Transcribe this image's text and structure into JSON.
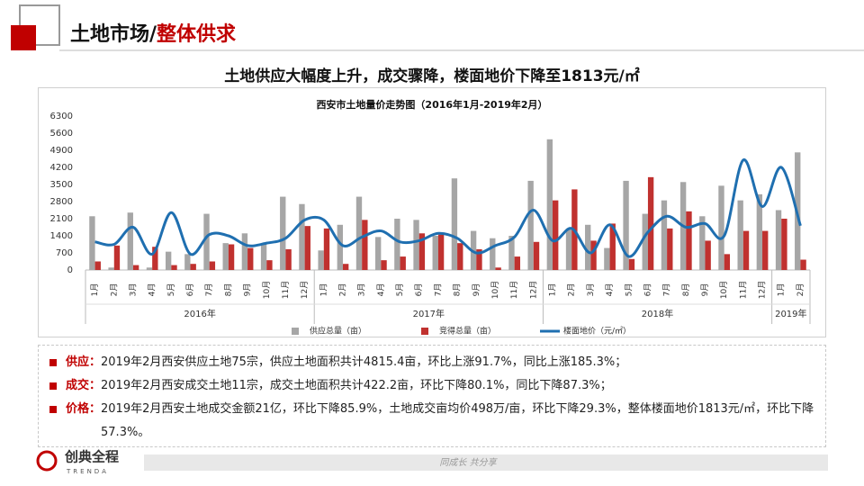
{
  "header": {
    "title_prefix": "土地市场/",
    "title_suffix": "整体供求"
  },
  "subtitle": "土地供应大幅度上升，成交骤降，楼面地价下降至1813元/㎡",
  "chart_data": {
    "type": "bar",
    "title": "西安市土地量价走势图（2016年1月-2019年2月）",
    "categories": [
      "1月",
      "2月",
      "3月",
      "4月",
      "5月",
      "6月",
      "7月",
      "8月",
      "9月",
      "10月",
      "11月",
      "12月",
      "1月",
      "2月",
      "3月",
      "4月",
      "5月",
      "6月",
      "7月",
      "8月",
      "9月",
      "10月",
      "11月",
      "12月",
      "1月",
      "2月",
      "3月",
      "4月",
      "5月",
      "6月",
      "7月",
      "8月",
      "9月",
      "10月",
      "11月",
      "12月",
      "1月",
      "2月"
    ],
    "x_groups": [
      "2016年",
      "2017年",
      "2018年",
      "2019年"
    ],
    "series": [
      {
        "name": "供应总量（亩）",
        "color": "#a6a6a6",
        "kind": "bar",
        "values": [
          2200,
          100,
          2350,
          100,
          750,
          650,
          2300,
          1100,
          1500,
          1050,
          3000,
          2700,
          800,
          1850,
          3000,
          1350,
          2100,
          2050,
          1400,
          3750,
          1600,
          1300,
          1400,
          3650,
          5350,
          1700,
          1850,
          900,
          3650,
          2300,
          2850,
          3600,
          2200,
          3450,
          2850,
          3100,
          2450,
          4815
        ]
      },
      {
        "name": "竞得总量（亩）",
        "color": "#c0312f",
        "kind": "bar",
        "values": [
          350,
          1000,
          200,
          950,
          200,
          250,
          350,
          1050,
          900,
          400,
          850,
          1800,
          1700,
          250,
          2050,
          400,
          550,
          1500,
          1450,
          1100,
          850,
          100,
          550,
          1150,
          2850,
          3300,
          1200,
          1900,
          450,
          3800,
          1700,
          2400,
          1200,
          650,
          1600,
          1600,
          2100,
          422
        ]
      },
      {
        "name": "楼面地价（元/㎡）",
        "color": "#1f6fb0",
        "kind": "line",
        "values": [
          1150,
          1050,
          1750,
          650,
          2350,
          650,
          1450,
          1400,
          1000,
          1100,
          1300,
          2050,
          2050,
          1000,
          1350,
          1600,
          1150,
          1200,
          1500,
          1300,
          700,
          1000,
          1350,
          2450,
          1200,
          1700,
          700,
          1850,
          550,
          1550,
          2200,
          1750,
          1900,
          1400,
          4500,
          2600,
          4200,
          1813
        ]
      }
    ],
    "ylim": [
      0,
      6300
    ],
    "yticks": [
      0,
      700,
      1400,
      2100,
      2800,
      3500,
      4200,
      4900,
      5600,
      6300
    ],
    "grid": false,
    "legend": "bottom"
  },
  "bullets": [
    {
      "label": "供应：",
      "text": "2019年2月西安供应土地75宗，供应土地面积共计4815.4亩，环比上涨91.7%，同比上涨185.3%；"
    },
    {
      "label": "成交：",
      "text": "2019年2月西安成交土地11宗，成交土地面积共计422.2亩，环比下降80.1%，同比下降87.3%；"
    },
    {
      "label": "价格：",
      "text": "2019年2月西安土地成交金额21亿，环比下降85.9%，土地成交亩均价498万/亩，环比下降29.3%，整体楼面地价1813元/㎡，环比下降57.3%。"
    }
  ],
  "footer": {
    "brand": "创典全程",
    "brand_en": "TRENDA",
    "slogan": "同成长 共分享"
  }
}
